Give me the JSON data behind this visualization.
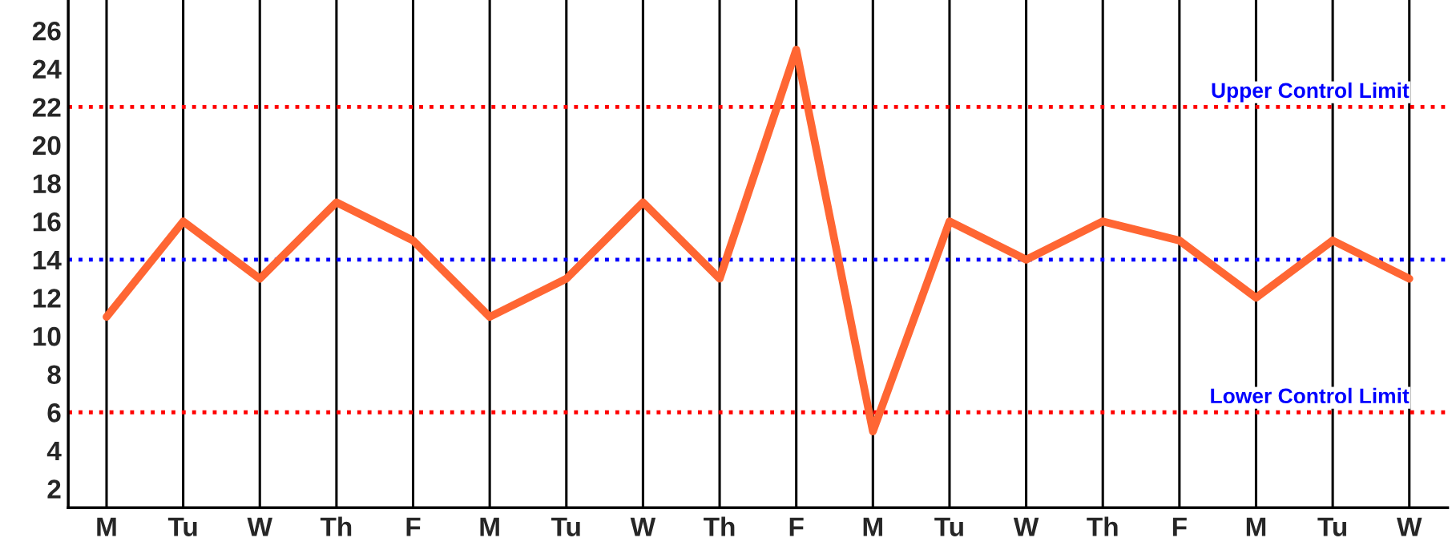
{
  "chart_data": {
    "type": "line",
    "categories": [
      "M",
      "Tu",
      "W",
      "Th",
      "F",
      "M",
      "Tu",
      "W",
      "Th",
      "F",
      "M",
      "Tu",
      "W",
      "Th",
      "F",
      "M",
      "Tu",
      "W"
    ],
    "series": [
      {
        "color": "#ff6633",
        "values": [
          11,
          16,
          13,
          17,
          15,
          11,
          13,
          17,
          13,
          25,
          5,
          16,
          14,
          16,
          15,
          12,
          15,
          13
        ]
      }
    ],
    "ylim": [
      1,
      27.6
    ],
    "yticks": [
      2,
      4,
      6,
      8,
      10,
      12,
      14,
      16,
      18,
      20,
      22,
      24,
      26
    ],
    "grid": "x",
    "marker": "none",
    "line_style": "solid",
    "ref_lines": [
      {
        "axis": "y",
        "value": 22,
        "label": "Upper Control Limit",
        "color": "#ff0000",
        "line_style": "dotted"
      },
      {
        "axis": "y",
        "value": 14,
        "color": "#0000ff",
        "line_style": "dotted"
      },
      {
        "axis": "y",
        "value": 6,
        "label": "Lower Control Limit",
        "color": "#ff0000",
        "line_style": "dotted"
      }
    ]
  }
}
